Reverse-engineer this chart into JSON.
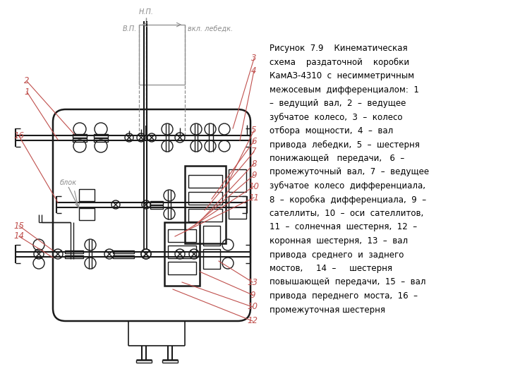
{
  "fig_width": 7.2,
  "fig_height": 5.4,
  "dpi": 100,
  "bg_color": "#ffffff",
  "dc": "#1a1a1a",
  "lc": "#c0504d",
  "ac": "#8c8c8c",
  "caption_lines": [
    "Рисунок  7.9    Кинематическая",
    "схема    раздаточной    коробки",
    "КамАЗ-4310  с  несимметричным",
    "межосевым  дифференциалом:  1",
    "–  ведущий  вал,  2  –  ведущее",
    "зубчатое  колесо,  3  –  колесо",
    "отбора  мощности,  4  –  вал",
    "привода  лебедки,  5  –  шестерня",
    "понижающей   передачи,   6  –",
    "промежуточный  вал,  7  –  ведущее",
    "зубчатое  колесо  дифференциала,",
    "8  –  коробка  дифференциала,  9  –",
    "сателлиты,  10  –  оси  сателлитов,",
    "11  –  солнечная  шестерня,  12  –",
    "коронная  шестерня,  13  –  вал",
    "привода  среднего  и  заднего",
    "мостов,     14  –     шестерня",
    "повышающей  передачи,  15  –  вал",
    "привода  переднего  моста,  16  –",
    "промежуточная шестерня"
  ]
}
